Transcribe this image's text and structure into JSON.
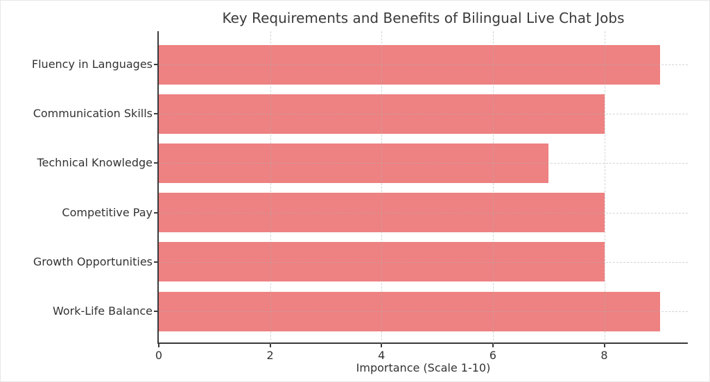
{
  "chart_data": {
    "type": "bar",
    "orientation": "horizontal",
    "title": "Key Requirements and Benefits of Bilingual Live Chat Jobs",
    "xlabel": "Importance (Scale 1-10)",
    "ylabel": "",
    "categories": [
      "Fluency in Languages",
      "Communication Skills",
      "Technical Knowledge",
      "Competitive Pay",
      "Growth Opportunities",
      "Work-Life Balance"
    ],
    "values": [
      9,
      8,
      7,
      8,
      8,
      9
    ],
    "xticks": [
      0,
      2,
      4,
      6,
      8
    ],
    "xlim": [
      0,
      9.5
    ],
    "grid": true,
    "grid_style": "dashed",
    "legend": "none",
    "colors": {
      "bar": "#ee8181",
      "spine": "#3a3a3a",
      "grid": "#b0b0b0",
      "text": "#333333",
      "background": "#ffffff"
    }
  }
}
